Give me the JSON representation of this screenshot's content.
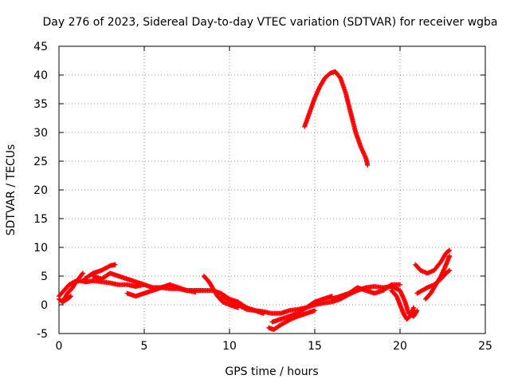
{
  "chart_data": {
    "type": "scatter",
    "title": "Day 276 of 2023, Sidereal Day-to-day VTEC variation (SDTVAR) for receiver wgba",
    "xlabel": "GPS time / hours",
    "ylabel": "SDTVAR / TECUs",
    "xlim": [
      0,
      25
    ],
    "ylim": [
      -5,
      45
    ],
    "xticks": [
      0,
      5,
      10,
      15,
      20,
      25
    ],
    "yticks": [
      -5,
      0,
      5,
      10,
      15,
      20,
      25,
      30,
      35,
      40,
      45
    ],
    "grid": true,
    "series": [
      {
        "name": "SDTVAR",
        "color": "#ff0000",
        "marker": "plus",
        "segments": [
          {
            "x": [
              0.0,
              0.3,
              0.6,
              0.9,
              1.2,
              1.6,
              2.0,
              2.5,
              3.0,
              3.5,
              4.0,
              4.5,
              5.0,
              5.5,
              6.0,
              6.5,
              7.0,
              7.5,
              8.0,
              8.5,
              9.0,
              9.5,
              10.0,
              10.5,
              11.0,
              11.5,
              12.0,
              12.5,
              13.0,
              13.5,
              14.0,
              14.5,
              15.0,
              15.5,
              16.0,
              16.5,
              17.0,
              17.5,
              18.0,
              18.5,
              19.0,
              19.5,
              20.0,
              20.3,
              20.5,
              20.8,
              21.0
            ],
            "y": [
              1.5,
              2.5,
              3.5,
              4.0,
              4.2,
              4.0,
              4.2,
              4.0,
              3.8,
              3.5,
              3.5,
              3.2,
              3.5,
              3.0,
              3.0,
              2.8,
              2.8,
              2.5,
              2.5,
              2.5,
              2.5,
              2.0,
              1.0,
              0.5,
              -0.5,
              -1.0,
              -1.2,
              -1.5,
              -1.5,
              -1.0,
              -0.8,
              -0.5,
              0.0,
              0.3,
              0.5,
              1.0,
              1.8,
              2.5,
              3.0,
              3.2,
              3.0,
              3.2,
              2.5,
              0.5,
              -1.5,
              -2.0,
              -1.0
            ]
          },
          {
            "x": [
              0.3,
              0.5,
              0.8,
              1.0,
              1.4
            ],
            "y": [
              1.0,
              2.0,
              3.0,
              4.0,
              5.5
            ]
          },
          {
            "x": [
              0.0,
              0.2,
              0.5,
              0.7
            ],
            "y": [
              1.0,
              0.5,
              1.0,
              1.5
            ]
          },
          {
            "x": [
              1.5,
              2.0,
              2.5,
              3.0,
              3.3
            ],
            "y": [
              4.5,
              5.5,
              6.0,
              6.8,
              7.0
            ]
          },
          {
            "x": [
              2.0,
              2.5,
              3.0,
              3.5,
              4.0,
              4.5,
              5.0
            ],
            "y": [
              5.0,
              4.5,
              5.5,
              5.0,
              4.5,
              4.0,
              3.5
            ]
          },
          {
            "x": [
              4.0,
              4.5,
              5.0,
              5.5,
              6.0,
              6.5,
              7.0,
              7.5,
              8.0
            ],
            "y": [
              2.0,
              1.5,
              2.0,
              2.5,
              3.0,
              3.5,
              3.0,
              2.5,
              2.2
            ]
          },
          {
            "x": [
              8.5,
              8.8,
              9.0,
              9.3,
              9.6,
              10.0,
              10.5
            ],
            "y": [
              5.0,
              4.0,
              3.0,
              1.5,
              0.5,
              0.0,
              -0.5
            ]
          },
          {
            "x": [
              9.5,
              10.0,
              10.5,
              11.0,
              11.5,
              12.0
            ],
            "y": [
              1.5,
              0.8,
              0.0,
              -0.8,
              -1.0,
              -1.5
            ]
          },
          {
            "x": [
              12.3,
              12.6,
              13.0,
              13.3,
              13.6,
              14.0,
              14.5,
              15.0
            ],
            "y": [
              -4.0,
              -4.3,
              -3.5,
              -3.0,
              -2.5,
              -2.0,
              -1.5,
              -1.0
            ]
          },
          {
            "x": [
              12.5,
              13.0,
              13.5,
              14.0,
              14.5,
              15.0,
              15.5,
              16.0
            ],
            "y": [
              -3.0,
              -2.5,
              -2.0,
              -1.5,
              -0.5,
              0.5,
              1.0,
              1.5
            ]
          },
          {
            "x": [
              16.0,
              16.5,
              17.0,
              17.5,
              18.0,
              18.5,
              19.0,
              19.5,
              20.0
            ],
            "y": [
              1.0,
              1.5,
              2.0,
              3.0,
              2.5,
              2.0,
              2.5,
              3.5,
              3.5
            ]
          },
          {
            "x": [
              14.4,
              14.7,
              15.0,
              15.3,
              15.6,
              15.9,
              16.2,
              16.5,
              16.8,
              17.1,
              17.4,
              17.7,
              18.0,
              18.1
            ],
            "y": [
              31.0,
              33.5,
              36.0,
              38.0,
              39.5,
              40.3,
              40.6,
              39.5,
              37.0,
              33.5,
              30.0,
              27.5,
              25.5,
              24.3
            ]
          },
          {
            "x": [
              20.9,
              21.2,
              21.6,
              22.0,
              22.4,
              22.7,
              22.9
            ],
            "y": [
              7.0,
              6.0,
              5.5,
              6.0,
              7.5,
              9.0,
              9.5
            ]
          },
          {
            "x": [
              21.0,
              21.3,
              21.6,
              22.0,
              22.4,
              22.7,
              22.9
            ],
            "y": [
              2.0,
              2.5,
              3.0,
              3.5,
              4.5,
              5.5,
              6.0
            ]
          },
          {
            "x": [
              21.5,
              21.8,
              22.1,
              22.4,
              22.7,
              22.9
            ],
            "y": [
              1.0,
              2.0,
              3.5,
              5.0,
              7.0,
              8.5
            ]
          },
          {
            "x": [
              19.5,
              19.8,
              20.0,
              20.2,
              20.4,
              20.6,
              20.8
            ],
            "y": [
              2.5,
              1.5,
              0.0,
              -1.5,
              -2.5,
              -2.0,
              -0.5
            ]
          }
        ]
      }
    ]
  }
}
